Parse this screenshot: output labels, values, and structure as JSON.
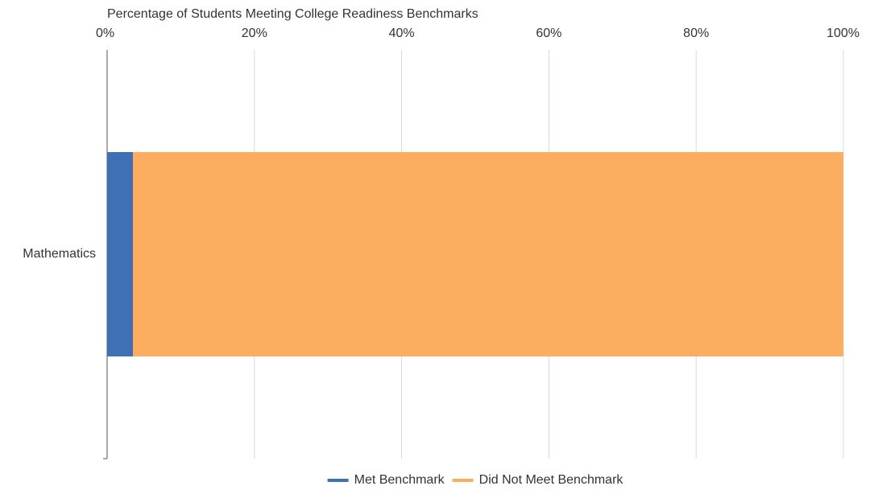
{
  "chart_data": {
    "type": "bar",
    "orientation": "horizontal",
    "stacked": true,
    "xlabel": "Percentage of Students Meeting College Readiness Benchmarks",
    "categories": [
      "Mathematics"
    ],
    "series": [
      {
        "name": "Met Benchmark",
        "color": "#3f6fb5",
        "values": [
          3.5
        ]
      },
      {
        "name": "Did Not Meet Benchmark",
        "color": "#fdad60",
        "values": [
          96.5
        ]
      }
    ],
    "xlim": [
      0,
      100
    ],
    "xticks": [
      {
        "value": 0,
        "label": "0%"
      },
      {
        "value": 20,
        "label": "20%"
      },
      {
        "value": 40,
        "label": "40%"
      },
      {
        "value": 60,
        "label": "60%"
      },
      {
        "value": 80,
        "label": "80%"
      },
      {
        "value": 100,
        "label": "100%"
      }
    ],
    "grid": true,
    "legend": "bottom"
  }
}
